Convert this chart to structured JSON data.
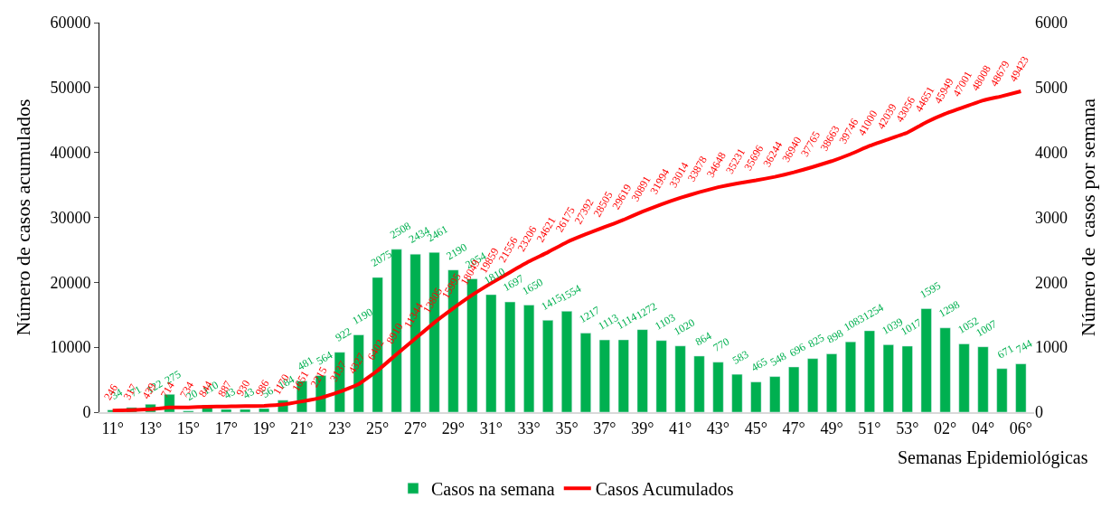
{
  "chart_data": {
    "type": "bar",
    "categories": [
      "11°",
      null,
      "13°",
      null,
      "15°",
      null,
      "17°",
      null,
      "19°",
      null,
      "21°",
      null,
      "23°",
      null,
      "25°",
      null,
      "27°",
      null,
      "29°",
      null,
      "31°",
      null,
      "33°",
      null,
      "35°",
      null,
      "37°",
      null,
      "39°",
      null,
      "41°",
      null,
      "43°",
      null,
      "45°",
      null,
      "47°",
      null,
      "49°",
      null,
      "51°",
      null,
      "53°",
      null,
      "02°",
      null,
      "04°",
      null,
      "06°"
    ],
    "series": [
      {
        "name": "Casos na semana",
        "type": "bar",
        "axis": "y2",
        "color": "#00b050",
        "values": [
          34,
          71,
          122,
          275,
          20,
          110,
          43,
          43,
          56,
          184,
          481,
          564,
          922,
          1190,
          2075,
          2508,
          2434,
          2461,
          2190,
          2054,
          1810,
          1697,
          1650,
          1415,
          1554,
          1217,
          1113,
          1114,
          1272,
          1103,
          1020,
          864,
          770,
          583,
          465,
          548,
          696,
          825,
          898,
          1083,
          1254,
          1039,
          1017,
          1595,
          1298,
          1052,
          1007,
          671,
          744
        ],
        "value_labels": [
          "34",
          "71",
          "122",
          "275",
          "20",
          "110",
          "43",
          "43",
          "56",
          "184",
          "481",
          "564",
          "922",
          "1190",
          "2075",
          "2508",
          "2434",
          "2461",
          "2190",
          "2054",
          "1810",
          "1697",
          "1650",
          "1415",
          "1554",
          "1217",
          "1113",
          "1114",
          "1272",
          "1103",
          "1020",
          "864",
          "770",
          "583",
          "465",
          "548",
          "696",
          "825",
          "898",
          "1083",
          "1254",
          "1039",
          "1017",
          "1595",
          "1298",
          "1052",
          "1007",
          "671",
          "744"
        ]
      },
      {
        "name": "Casos Acumulados",
        "type": "line",
        "axis": "y",
        "color": "#ff0000",
        "marker": "none",
        "line_style": "solid",
        "values": [
          246,
          317,
          439,
          714,
          734,
          844,
          887,
          930,
          986,
          1170,
          1651,
          2215,
          3137,
          4327,
          6402,
          8910,
          11344,
          13805,
          15995,
          18049,
          19859,
          21556,
          23206,
          24621,
          26175,
          27392,
          28505,
          29619,
          30891,
          31994,
          33014,
          33878,
          34648,
          35231,
          35696,
          36244,
          36940,
          37765,
          38663,
          39746,
          41000,
          42039,
          43056,
          44651,
          45949,
          47001,
          48008,
          48679,
          49423
        ],
        "value_labels": [
          "246",
          "317",
          "439",
          "714",
          "734",
          "844",
          "887",
          "930",
          "986",
          "1170",
          "1651",
          "2215",
          "3137",
          "4327",
          "6402",
          "8910",
          "11344",
          "13805",
          "15995",
          "18049",
          "19859",
          "21556",
          "23206",
          "24621",
          "26175",
          "27392",
          "28505",
          "29619",
          "30891",
          "31994",
          "33014",
          "33878",
          "34648",
          "35231",
          "35696",
          "36244",
          "36940",
          "37765",
          "38663",
          "39746",
          "41000",
          "42039",
          "43056",
          "44651",
          "45949",
          "47001",
          "48008",
          "48679",
          "49423"
        ]
      }
    ],
    "xlabel": "Semanas Epidemiológicas",
    "ylabel": "Número de casos acumulados",
    "y2label": "Número de  casos por semana",
    "ylim": [
      0,
      60000
    ],
    "yticks": [
      0,
      10000,
      20000,
      30000,
      40000,
      50000,
      60000
    ],
    "y2lim": [
      0,
      6000
    ],
    "y2ticks": [
      0,
      1000,
      2000,
      3000,
      4000,
      5000,
      6000
    ],
    "legend": "bottom"
  }
}
